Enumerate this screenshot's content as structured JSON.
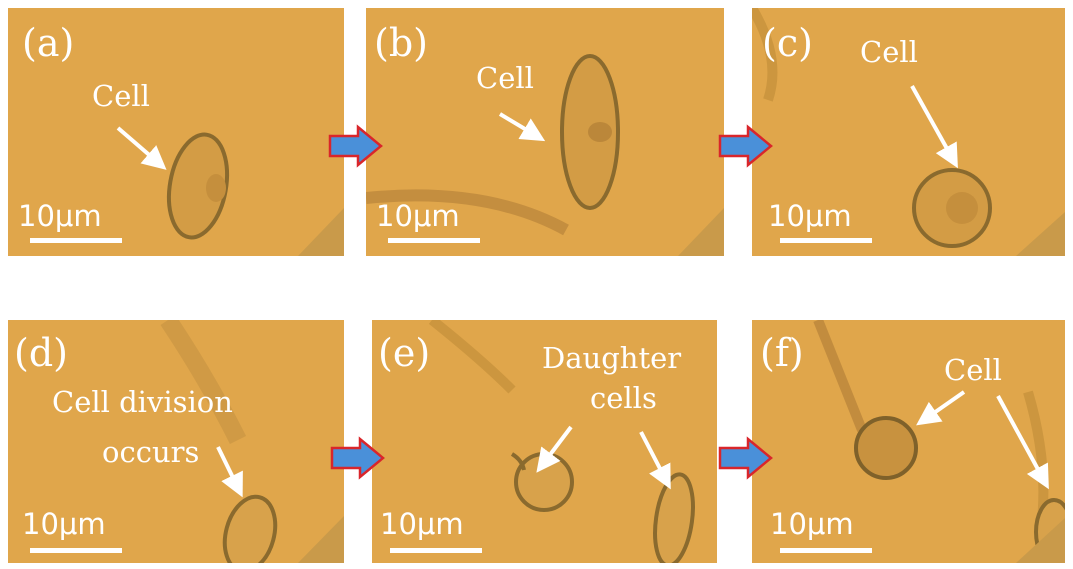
{
  "panels": [
    {
      "label": "(a)",
      "annotations": [
        "Cell"
      ],
      "scale": "10μm"
    },
    {
      "label": "(b)",
      "annotations": [
        "Cell"
      ],
      "scale": "10μm"
    },
    {
      "label": "(c)",
      "annotations": [
        "Cell"
      ],
      "scale": "10μm"
    },
    {
      "label": "(d)",
      "annotations": [
        "Cell division",
        "occurs"
      ],
      "scale": "10μm"
    },
    {
      "label": "(e)",
      "annotations": [
        "Daughter",
        "cells"
      ],
      "scale": "10μm"
    },
    {
      "label": "(f)",
      "annotations": [
        "Cell"
      ],
      "scale": "10μm"
    }
  ],
  "colors": {
    "background": "#e0a64b",
    "cell_outline": "#8a6a2e",
    "arrow_fill": "#4a90d9",
    "arrow_stroke": "#d9262b",
    "text": "#ffffff"
  }
}
